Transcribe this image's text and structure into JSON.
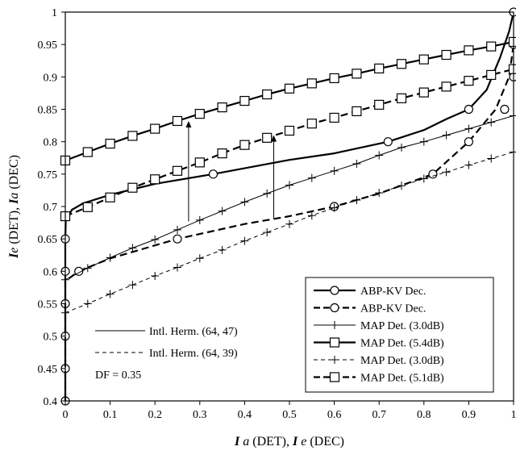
{
  "chart_data": {
    "type": "line",
    "xlabel": "I a (DET), I e (DEC)",
    "ylabel": "Ie (DET), Ia (DEC)",
    "xlabel_parts": [
      {
        "text": "I",
        "style": "bolditalic"
      },
      {
        "text": " a",
        "style": "italic"
      },
      {
        "text": " (DET), ",
        "style": "normal"
      },
      {
        "text": "I",
        "style": "bolditalic"
      },
      {
        "text": " e",
        "style": "italic"
      },
      {
        "text": " (DEC)",
        "style": "normal"
      }
    ],
    "ylabel_parts": [
      {
        "text": "I",
        "style": "bolditalic"
      },
      {
        "text": "e",
        "style": "italic"
      },
      {
        "text": " (DET), ",
        "style": "normal"
      },
      {
        "text": "I",
        "style": "bolditalic"
      },
      {
        "text": "a",
        "style": "italic"
      },
      {
        "text": " (DEC)",
        "style": "normal"
      }
    ],
    "xlim": [
      0,
      1
    ],
    "ylim": [
      0.4,
      1
    ],
    "x_ticks": [
      "0",
      "0.1",
      "0.2",
      "0.3",
      "0.4",
      "0.5",
      "0.6",
      "0.7",
      "0.8",
      "0.9",
      "1"
    ],
    "y_ticks": [
      "0.4",
      "0.45",
      "0.5",
      "0.55",
      "0.6",
      "0.65",
      "0.7",
      "0.75",
      "0.8",
      "0.85",
      "0.9",
      "0.95",
      "1"
    ],
    "grid": false,
    "legend_position": "bottom-right",
    "legend_entries": [
      "ABP-KV Dec.",
      "ABP-KV Dec.",
      "MAP Det. (3.0dB)",
      "MAP Det. (5.4dB)",
      "MAP Det. (3.0dB)",
      "MAP Det. (5.1dB)"
    ],
    "code_legend": [
      {
        "label": "Intl. Herm. (64, 47)",
        "dash": "solid"
      },
      {
        "label": "Intl. Herm. (64, 39)",
        "dash": "dashed"
      }
    ],
    "annotation": "DF = 0.35",
    "arrows": [
      {
        "x": 0.275,
        "from": 0.677,
        "to": 0.832
      },
      {
        "x": 0.465,
        "from": 0.682,
        "to": 0.81
      }
    ],
    "series": [
      {
        "name": "ABP-KV Dec.",
        "line": "solid",
        "width": 2,
        "marker": "circle",
        "points": [
          [
            0.0,
            0.4
          ],
          [
            0.0,
            0.45
          ],
          [
            0.0,
            0.5
          ],
          [
            0.0,
            0.55
          ],
          [
            0.0,
            0.6
          ],
          [
            0.0,
            0.65
          ],
          [
            0.001,
            0.68
          ],
          [
            0.015,
            0.695
          ],
          [
            0.04,
            0.705
          ],
          [
            0.1,
            0.718
          ],
          [
            0.2,
            0.735
          ],
          [
            0.33,
            0.75
          ],
          [
            0.5,
            0.772
          ],
          [
            0.6,
            0.782
          ],
          [
            0.72,
            0.8
          ],
          [
            0.8,
            0.818
          ],
          [
            0.85,
            0.835
          ],
          [
            0.9,
            0.85
          ],
          [
            0.94,
            0.88
          ],
          [
            0.97,
            0.93
          ],
          [
            0.99,
            0.97
          ],
          [
            1.0,
            1.0
          ]
        ],
        "marker_points": [
          [
            0.0,
            0.4
          ],
          [
            0.0,
            0.45
          ],
          [
            0.0,
            0.5
          ],
          [
            0.0,
            0.55
          ],
          [
            0.0,
            0.6
          ],
          [
            0.0,
            0.65
          ],
          [
            0.33,
            0.75
          ],
          [
            0.72,
            0.8
          ],
          [
            0.9,
            0.85
          ],
          [
            1.0,
            1.0
          ]
        ]
      },
      {
        "name": "ABP-KV Dec.",
        "line": "dashed",
        "width": 2,
        "marker": "circle",
        "points": [
          [
            0.0,
            0.4
          ],
          [
            0.0,
            0.45
          ],
          [
            0.0,
            0.5
          ],
          [
            0.0,
            0.55
          ],
          [
            0.0,
            0.585
          ],
          [
            0.03,
            0.6
          ],
          [
            0.1,
            0.62
          ],
          [
            0.25,
            0.65
          ],
          [
            0.4,
            0.673
          ],
          [
            0.5,
            0.685
          ],
          [
            0.6,
            0.7
          ],
          [
            0.7,
            0.72
          ],
          [
            0.82,
            0.75
          ],
          [
            0.9,
            0.8
          ],
          [
            0.96,
            0.85
          ],
          [
            0.99,
            0.9
          ],
          [
            1.0,
            0.95
          ]
        ],
        "marker_points": [
          [
            0.03,
            0.6
          ],
          [
            0.25,
            0.65
          ],
          [
            0.6,
            0.7
          ],
          [
            0.82,
            0.75
          ],
          [
            0.9,
            0.8
          ],
          [
            0.98,
            0.85
          ],
          [
            1.0,
            0.9
          ],
          [
            1.0,
            0.95
          ]
        ]
      },
      {
        "name": "MAP Det. (3.0dB)",
        "line": "solid",
        "width": 1,
        "marker": "plus",
        "points": [
          [
            0.0,
            0.587
          ],
          [
            0.05,
            0.605
          ],
          [
            0.1,
            0.621
          ],
          [
            0.15,
            0.636
          ],
          [
            0.2,
            0.649
          ],
          [
            0.25,
            0.664
          ],
          [
            0.3,
            0.679
          ],
          [
            0.35,
            0.693
          ],
          [
            0.4,
            0.707
          ],
          [
            0.45,
            0.72
          ],
          [
            0.5,
            0.733
          ],
          [
            0.55,
            0.744
          ],
          [
            0.6,
            0.755
          ],
          [
            0.65,
            0.766
          ],
          [
            0.7,
            0.779
          ],
          [
            0.75,
            0.791
          ],
          [
            0.8,
            0.8
          ],
          [
            0.85,
            0.81
          ],
          [
            0.9,
            0.82
          ],
          [
            0.95,
            0.83
          ],
          [
            1.0,
            0.84
          ]
        ]
      },
      {
        "name": "MAP Det. (5.4dB)",
        "line": "solid",
        "width": 2,
        "marker": "square",
        "points": [
          [
            0.0,
            0.771
          ],
          [
            0.05,
            0.784
          ],
          [
            0.1,
            0.797
          ],
          [
            0.15,
            0.809
          ],
          [
            0.2,
            0.82
          ],
          [
            0.25,
            0.832
          ],
          [
            0.3,
            0.843
          ],
          [
            0.35,
            0.853
          ],
          [
            0.4,
            0.863
          ],
          [
            0.45,
            0.873
          ],
          [
            0.5,
            0.882
          ],
          [
            0.55,
            0.89
          ],
          [
            0.6,
            0.898
          ],
          [
            0.65,
            0.905
          ],
          [
            0.7,
            0.913
          ],
          [
            0.75,
            0.92
          ],
          [
            0.8,
            0.927
          ],
          [
            0.85,
            0.934
          ],
          [
            0.9,
            0.941
          ],
          [
            0.95,
            0.947
          ],
          [
            1.0,
            0.954
          ]
        ]
      },
      {
        "name": "MAP Det. (3.0dB)",
        "line": "dashed",
        "width": 1,
        "marker": "plus",
        "points": [
          [
            0.0,
            0.536
          ],
          [
            0.05,
            0.55
          ],
          [
            0.1,
            0.565
          ],
          [
            0.15,
            0.579
          ],
          [
            0.2,
            0.593
          ],
          [
            0.25,
            0.606
          ],
          [
            0.3,
            0.62
          ],
          [
            0.35,
            0.633
          ],
          [
            0.4,
            0.647
          ],
          [
            0.45,
            0.66
          ],
          [
            0.5,
            0.673
          ],
          [
            0.55,
            0.686
          ],
          [
            0.6,
            0.698
          ],
          [
            0.65,
            0.71
          ],
          [
            0.7,
            0.721
          ],
          [
            0.75,
            0.732
          ],
          [
            0.8,
            0.743
          ],
          [
            0.85,
            0.753
          ],
          [
            0.9,
            0.764
          ],
          [
            0.95,
            0.774
          ],
          [
            1.0,
            0.784
          ]
        ]
      },
      {
        "name": "MAP Det. (5.1dB)",
        "line": "dashed",
        "width": 2,
        "marker": "square",
        "points": [
          [
            0.0,
            0.685
          ],
          [
            0.05,
            0.699
          ],
          [
            0.1,
            0.714
          ],
          [
            0.15,
            0.729
          ],
          [
            0.2,
            0.742
          ],
          [
            0.25,
            0.755
          ],
          [
            0.3,
            0.768
          ],
          [
            0.35,
            0.782
          ],
          [
            0.4,
            0.795
          ],
          [
            0.45,
            0.806
          ],
          [
            0.5,
            0.817
          ],
          [
            0.55,
            0.828
          ],
          [
            0.6,
            0.837
          ],
          [
            0.65,
            0.847
          ],
          [
            0.7,
            0.857
          ],
          [
            0.75,
            0.867
          ],
          [
            0.8,
            0.876
          ],
          [
            0.85,
            0.885
          ],
          [
            0.9,
            0.894
          ],
          [
            0.95,
            0.903
          ],
          [
            1.0,
            0.912
          ]
        ]
      }
    ]
  }
}
